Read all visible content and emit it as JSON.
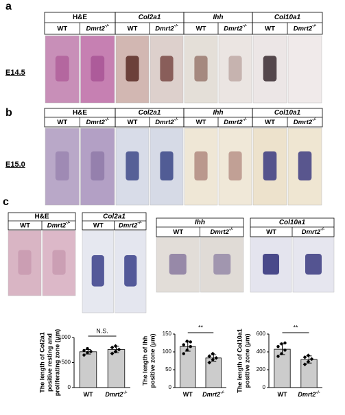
{
  "figure": {
    "panels": [
      {
        "label": "a",
        "stage": "E14.5"
      },
      {
        "label": "b",
        "stage": "E15.0"
      },
      {
        "label": "c"
      }
    ],
    "stains": [
      "H&E",
      "Col2a1",
      "Ihh",
      "Col10a1"
    ],
    "genotypes": [
      "WT",
      "Dmrt2"
    ],
    "genotype_sup": "-/-"
  },
  "chart_data": [
    {
      "type": "bar",
      "ylabel_lines": [
        "The length of Col2a1",
        "positive resting and",
        "proliferating zone (μm)"
      ],
      "categories": [
        "WT",
        "Dmrt2"
      ],
      "knockout_superscript": "-/-",
      "values": [
        715,
        760
      ],
      "errors": [
        45,
        65
      ],
      "points": [
        [
          650,
          700,
          720,
          740,
          780
        ],
        [
          680,
          720,
          760,
          800,
          830
        ]
      ],
      "ylim": [
        0,
        1000
      ],
      "yticks": [
        0,
        500,
        1000
      ],
      "significance": "N.S.",
      "color": "#cccccc"
    },
    {
      "type": "bar",
      "ylabel_lines": [
        "The length of Ihh",
        "positive zone (μm)"
      ],
      "categories": [
        "WT",
        "Dmrt2"
      ],
      "knockout_superscript": "-/-",
      "values": [
        115,
        83
      ],
      "errors": [
        13,
        9
      ],
      "points": [
        [
          95,
          105,
          115,
          120,
          130,
          128
        ],
        [
          70,
          78,
          83,
          88,
          95
        ]
      ],
      "ylim": [
        0,
        150
      ],
      "yticks": [
        0,
        50,
        100,
        150
      ],
      "significance": "**",
      "color": "#cccccc"
    },
    {
      "type": "bar",
      "ylabel_lines": [
        "The length of Col10a1",
        "positive zone (μm)"
      ],
      "categories": [
        "WT",
        "Dmrt2"
      ],
      "knockout_superscript": "-/-",
      "values": [
        430,
        315
      ],
      "errors": [
        60,
        40
      ],
      "points": [
        [
          350,
          380,
          420,
          460,
          490,
          500
        ],
        [
          260,
          290,
          320,
          340,
          360
        ]
      ],
      "ylim": [
        0,
        600
      ],
      "yticks": [
        0,
        200,
        400,
        600
      ],
      "significance": "**",
      "color": "#cccccc"
    }
  ]
}
